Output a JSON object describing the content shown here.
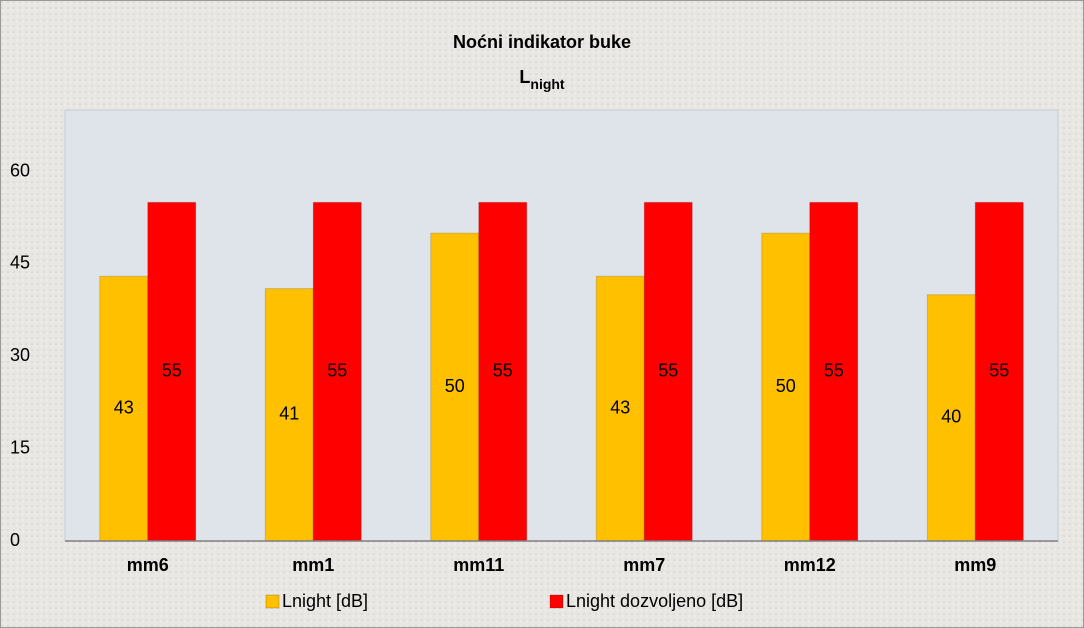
{
  "chart_data": {
    "type": "bar",
    "title": "Noćni indikator buke",
    "subtitle": [
      "L",
      "night"
    ],
    "categories": [
      "mm6",
      "mm1",
      "mm11",
      "mm7",
      "mm12",
      "mm9"
    ],
    "series": [
      {
        "name": "Lnight [dB]",
        "color": "#ffc000",
        "values": [
          43,
          41,
          50,
          43,
          50,
          40
        ]
      },
      {
        "name": "Lnight dozvoljeno [dB]",
        "color": "#ff0000",
        "values": [
          55,
          55,
          55,
          55,
          55,
          55
        ]
      }
    ],
    "ylim": [
      0,
      70
    ],
    "yticks": [
      0,
      15,
      30,
      45,
      60
    ],
    "grid": false,
    "legend": "bottom"
  }
}
